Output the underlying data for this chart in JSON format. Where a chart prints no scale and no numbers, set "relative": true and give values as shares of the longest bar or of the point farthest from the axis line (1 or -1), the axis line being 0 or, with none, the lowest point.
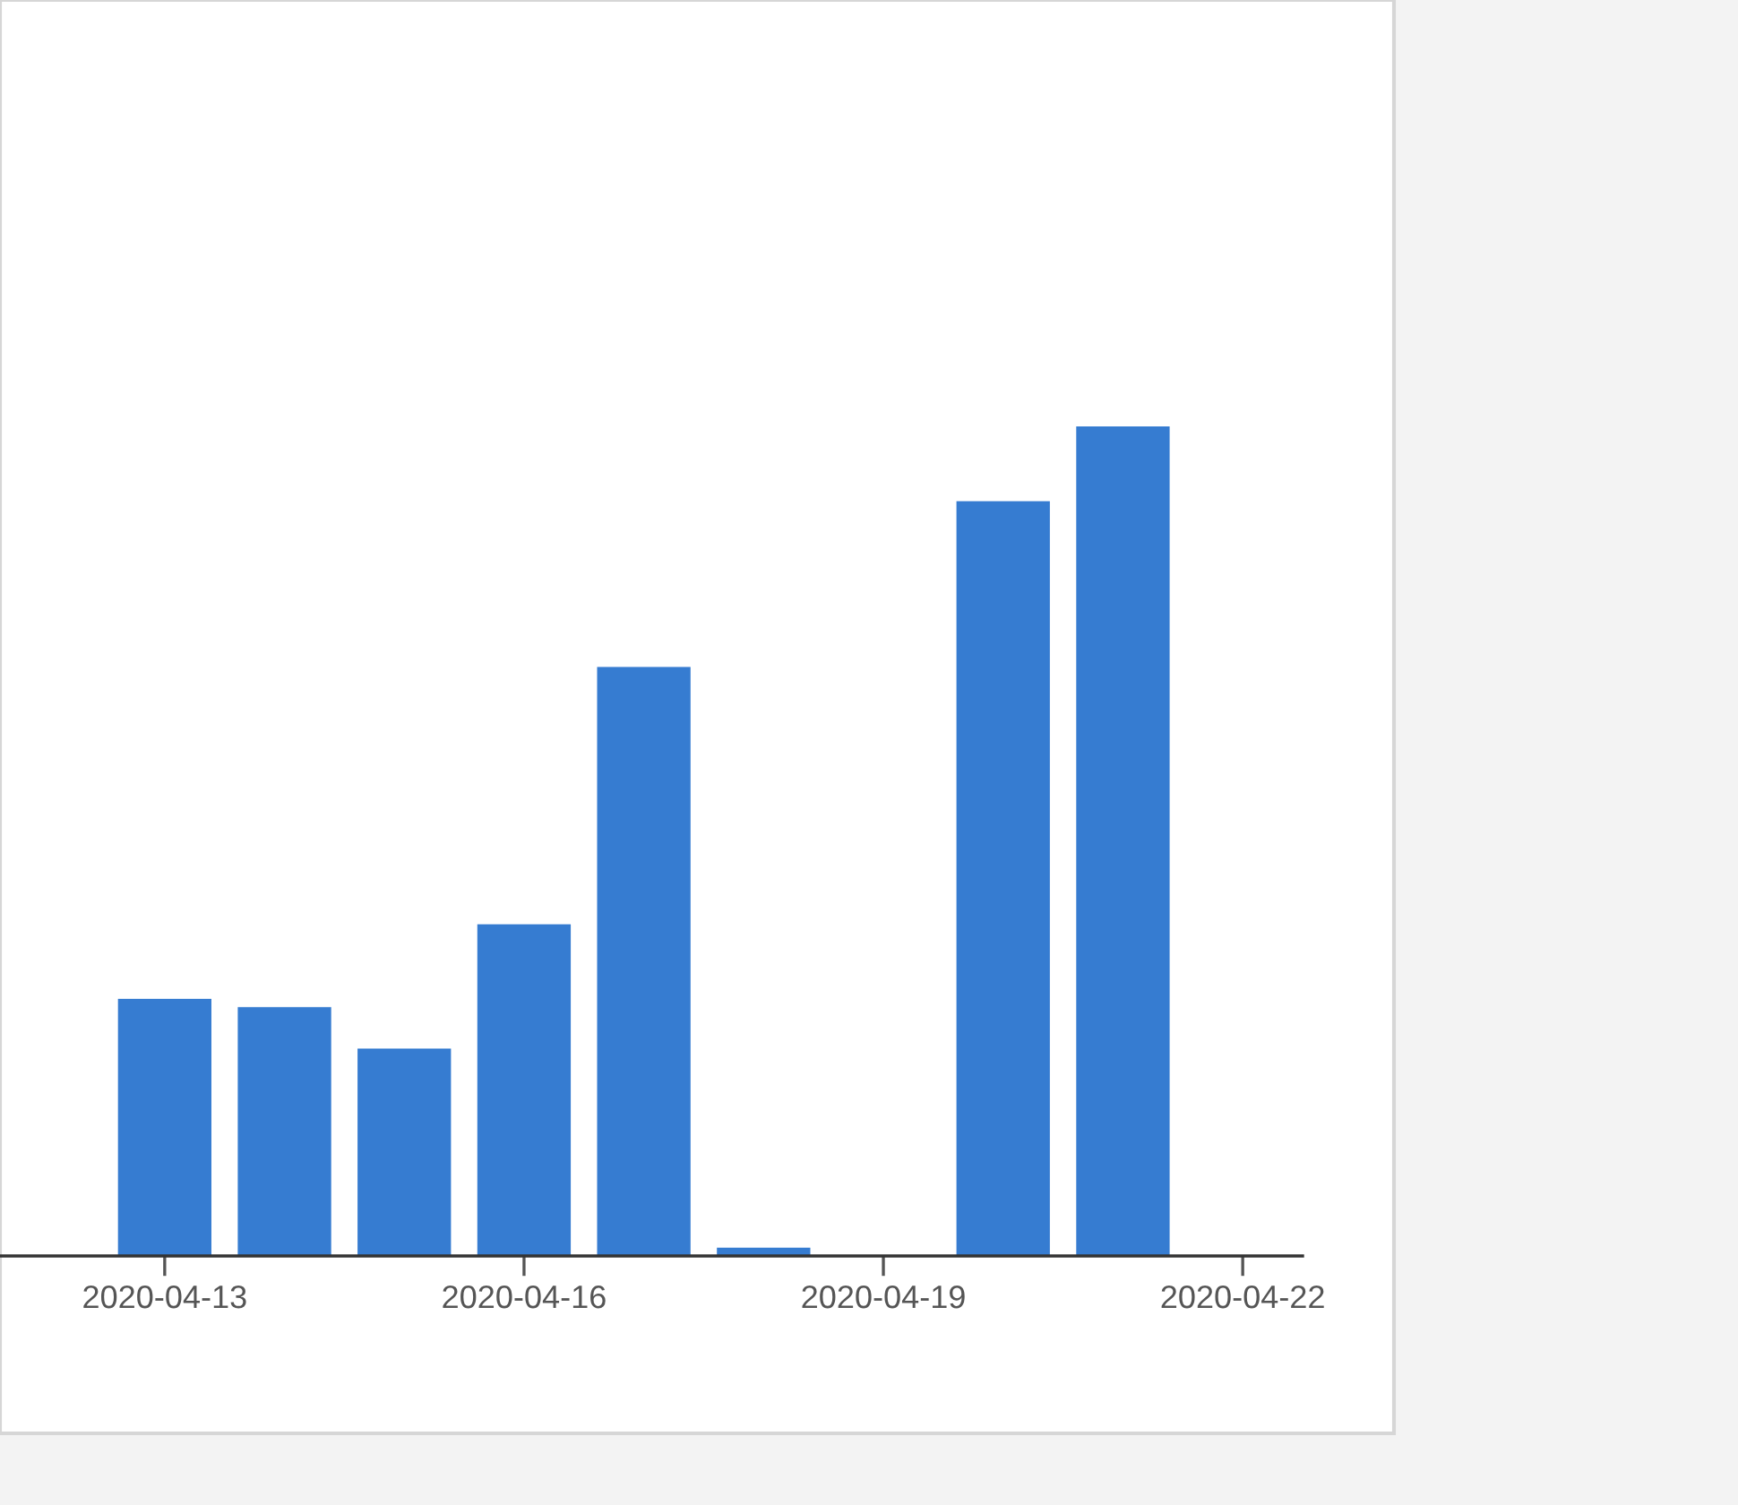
{
  "chart_data": {
    "type": "bar",
    "relative": true,
    "x": [
      "2020-04-13",
      "2020-04-14",
      "2020-04-15",
      "2020-04-16",
      "2020-04-17",
      "2020-04-18",
      "2020-04-20",
      "2020-04-21"
    ],
    "values": [
      0.31,
      0.3,
      0.25,
      0.4,
      0.71,
      0.01,
      0.91,
      1
    ],
    "color": "#367cd1",
    "xlim": [
      "2020-04-11T15:00",
      "2020-04-22T12:00"
    ],
    "xticks": [
      "2020-04-13",
      "2020-04-16",
      "2020-04-19",
      "2020-04-22"
    ],
    "grid": false,
    "legend": false
  }
}
